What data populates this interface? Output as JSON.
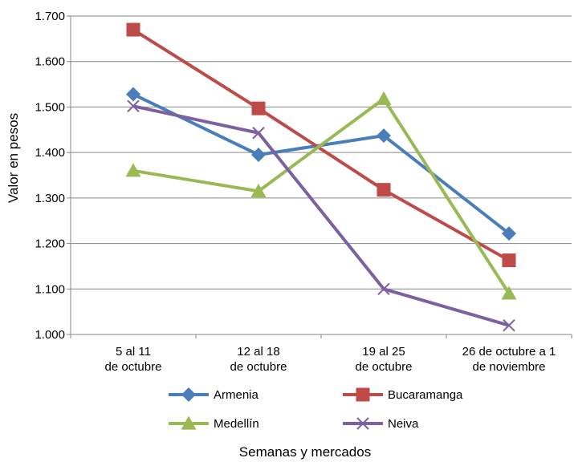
{
  "chart_data": {
    "type": "line",
    "title": "",
    "xlabel": "Semanas y mercados",
    "ylabel": "Valor en pesos",
    "ylim": [
      1000,
      1700
    ],
    "ytick_step": 100,
    "yticks": [
      "1.000",
      "1.100",
      "1.200",
      "1.300",
      "1.400",
      "1.500",
      "1.600",
      "1.700"
    ],
    "grid": true,
    "legend_position": "bottom",
    "categories": [
      [
        "5 al 11",
        "de octubre"
      ],
      [
        "12 al 18",
        "de octubre"
      ],
      [
        "19 al 25",
        "de octubre"
      ],
      [
        "26 de octubre a 1",
        "de noviembre"
      ]
    ],
    "series": [
      {
        "name": "Armenia",
        "color": "#4a7ebb",
        "marker": "diamond",
        "values": [
          1528,
          1395,
          1437,
          1222
        ]
      },
      {
        "name": "Bucaramanga",
        "color": "#be4b48",
        "marker": "square",
        "values": [
          1670,
          1497,
          1318,
          1163
        ]
      },
      {
        "name": "Medellín",
        "color": "#98b954",
        "marker": "triangle",
        "values": [
          1360,
          1315,
          1518,
          1090
        ]
      },
      {
        "name": "Neiva",
        "color": "#7d60a0",
        "marker": "x",
        "values": [
          1502,
          1443,
          1100,
          1020
        ]
      }
    ]
  }
}
